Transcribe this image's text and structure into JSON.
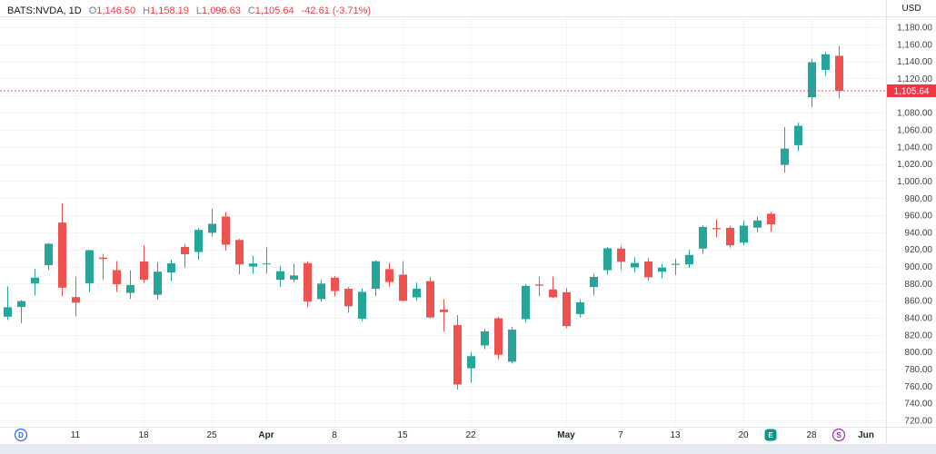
{
  "legend": {
    "title": "BATS:NVDA, 1D",
    "o_label": "O",
    "o": "1,146.50",
    "h_label": "H",
    "h": "1,158.19",
    "l_label": "L",
    "l": "1,096.63",
    "c_label": "C",
    "c": "1,105.64",
    "change": "-42.61 (-3.71%)"
  },
  "price_axis": {
    "currency": "USD",
    "ticks": [
      720,
      740,
      760,
      780,
      800,
      820,
      840,
      860,
      880,
      900,
      920,
      940,
      960,
      980,
      1000,
      1020,
      1040,
      1060,
      1080,
      1100,
      1120,
      1140,
      1160,
      1180
    ],
    "price_at_top": 1192.7,
    "price_at_bottom": 712.6,
    "last_price": 1105.64,
    "last_price_label": "1,105.64",
    "label_color": "#3c4049",
    "badge_color": "#f23645"
  },
  "time_axis": {
    "labels": [
      {
        "text": "11",
        "i": 5,
        "month": false
      },
      {
        "text": "18",
        "i": 10,
        "month": false
      },
      {
        "text": "25",
        "i": 15,
        "month": false
      },
      {
        "text": "Apr",
        "i": 19,
        "month": true
      },
      {
        "text": "8",
        "i": 24,
        "month": false
      },
      {
        "text": "15",
        "i": 29,
        "month": false
      },
      {
        "text": "22",
        "i": 34,
        "month": false
      },
      {
        "text": "May",
        "i": 41,
        "month": true
      },
      {
        "text": "7",
        "i": 45,
        "month": false
      },
      {
        "text": "13",
        "i": 49,
        "month": false
      },
      {
        "text": "20",
        "i": 54,
        "month": false
      },
      {
        "text": "28",
        "i": 59,
        "month": false
      },
      {
        "text": "Jun",
        "i": 63,
        "month": true
      }
    ]
  },
  "markers": [
    {
      "type": "dividend",
      "label": "D",
      "i": 1,
      "color": "#2962ff",
      "style": "outline"
    },
    {
      "type": "earnings",
      "label": "E",
      "i": 56,
      "color": "#089981",
      "style": "filled"
    },
    {
      "type": "split",
      "label": "S",
      "i": 61,
      "color": "#9c27b0",
      "style": "outline"
    }
  ],
  "chart_data": {
    "type": "candlestick",
    "symbol": "BATS:NVDA",
    "interval": "1D",
    "up_color": "#26a69a",
    "down_color": "#ef5350",
    "grid": true,
    "ylim": [
      712.6,
      1192.7
    ],
    "candles": [
      [
        "Mar 4",
        841.3,
        876.9,
        837.5,
        852.4
      ],
      [
        "Mar 5",
        852.7,
        860.9,
        833.8,
        859.6
      ],
      [
        "Mar 6",
        880.2,
        897.2,
        866.0,
        887.0
      ],
      [
        "Mar 7",
        901.6,
        927.7,
        896.1,
        926.7
      ],
      [
        "Mar 8",
        951.4,
        974.0,
        865.1,
        875.3
      ],
      [
        "Mar 11",
        864.3,
        888.0,
        841.7,
        857.7
      ],
      [
        "Mar 12",
        880.5,
        919.6,
        870.1,
        919.1
      ],
      [
        "Mar 13",
        910.5,
        915.0,
        884.4,
        908.9
      ],
      [
        "Mar 14",
        895.8,
        906.5,
        870.3,
        879.4
      ],
      [
        "Mar 15",
        869.3,
        895.5,
        862.1,
        878.4
      ],
      [
        "Mar 18",
        906.0,
        925.1,
        880.9,
        884.6
      ],
      [
        "Mar 19",
        867.0,
        905.0,
        861.4,
        894.0
      ],
      [
        "Mar 20",
        893.0,
        908.0,
        883.2,
        903.7
      ],
      [
        "Mar 21",
        923.0,
        926.3,
        898.6,
        914.4
      ],
      [
        "Mar 22",
        917.0,
        945.0,
        908.1,
        942.9
      ],
      [
        "Mar 25",
        939.5,
        967.7,
        935.1,
        950.0
      ],
      [
        "Mar 26",
        958.5,
        963.8,
        918.7,
        925.6
      ],
      [
        "Mar 27",
        931.1,
        932.4,
        891.2,
        902.5
      ],
      [
        "Mar 28",
        900.0,
        913.0,
        891.6,
        903.6
      ],
      [
        "Apr 1",
        903.0,
        922.3,
        892.0,
        903.6
      ],
      [
        "Apr 2",
        884.5,
        900.6,
        876.2,
        894.5
      ],
      [
        "Apr 3",
        884.8,
        903.4,
        881.5,
        889.6
      ],
      [
        "Apr 4",
        904.0,
        906.2,
        852.7,
        859.0
      ],
      [
        "Apr 5",
        862.0,
        884.4,
        859.0,
        880.1
      ],
      [
        "Apr 8",
        887.0,
        888.8,
        865.2,
        871.3
      ],
      [
        "Apr 9",
        874.0,
        876.0,
        846.0,
        853.5
      ],
      [
        "Apr 10",
        839.0,
        874.3,
        836.5,
        870.4
      ],
      [
        "Apr 11",
        874.0,
        907.4,
        865.5,
        906.2
      ],
      [
        "Apr 12",
        897.0,
        904.2,
        876.4,
        881.9
      ],
      [
        "Apr 15",
        890.5,
        906.4,
        859.0,
        860.0
      ],
      [
        "Apr 16",
        864.0,
        881.3,
        860.3,
        874.2
      ],
      [
        "Apr 17",
        883.0,
        887.8,
        839.5,
        840.4
      ],
      [
        "Apr 18",
        849.7,
        861.9,
        824.0,
        846.7
      ],
      [
        "Apr 19",
        831.5,
        843.2,
        756.1,
        762.0
      ],
      [
        "Apr 22",
        781.0,
        800.1,
        764.0,
        795.2
      ],
      [
        "Apr 23",
        807.7,
        827.3,
        803.4,
        824.2
      ],
      [
        "Apr 24",
        839.5,
        841.3,
        791.3,
        796.8
      ],
      [
        "Apr 25",
        788.7,
        829.5,
        786.6,
        826.3
      ],
      [
        "Apr 26",
        838.5,
        879.3,
        834.5,
        877.4
      ],
      [
        "Apr 29",
        879.0,
        888.0,
        865.1,
        877.6
      ],
      [
        "Apr 30",
        873.2,
        888.4,
        863.1,
        864.0
      ],
      [
        "May 1",
        869.9,
        874.9,
        828.0,
        830.4
      ],
      [
        "May 2",
        844.4,
        861.8,
        840.5,
        858.2
      ],
      [
        "May 3",
        876.0,
        891.4,
        866.0,
        887.9
      ],
      [
        "May 6",
        895.8,
        922.9,
        890.4,
        921.4
      ],
      [
        "May 7",
        921.0,
        924.1,
        896.2,
        905.5
      ],
      [
        "May 8",
        899.0,
        911.0,
        893.0,
        904.1
      ],
      [
        "May 9",
        906.0,
        910.0,
        883.1,
        887.5
      ],
      [
        "May 10",
        894.0,
        903.3,
        886.2,
        898.8
      ],
      [
        "May 13",
        902.0,
        909.1,
        890.1,
        903.2
      ],
      [
        "May 14",
        902.5,
        919.6,
        898.5,
        913.6
      ],
      [
        "May 15",
        921.0,
        948.2,
        915.1,
        946.3
      ],
      [
        "May 16",
        945.0,
        955.0,
        934.4,
        943.6
      ],
      [
        "May 17",
        945.3,
        947.3,
        922.0,
        924.8
      ],
      [
        "May 20",
        928.0,
        953.9,
        924.7,
        947.8
      ],
      [
        "May 21",
        945.5,
        958.3,
        940.1,
        953.9
      ],
      [
        "May 22",
        961.8,
        963.9,
        940.6,
        949.5
      ],
      [
        "May 23",
        1018.9,
        1063.2,
        1010.0,
        1038.0
      ],
      [
        "May 24",
        1042.0,
        1068.4,
        1034.9,
        1064.7
      ],
      [
        "May 28",
        1098.0,
        1143.0,
        1086.5,
        1139.0
      ],
      [
        "May 29",
        1130.0,
        1151.0,
        1123.2,
        1148.3
      ],
      [
        "May 30",
        1146.5,
        1158.19,
        1096.63,
        1105.64
      ]
    ]
  }
}
